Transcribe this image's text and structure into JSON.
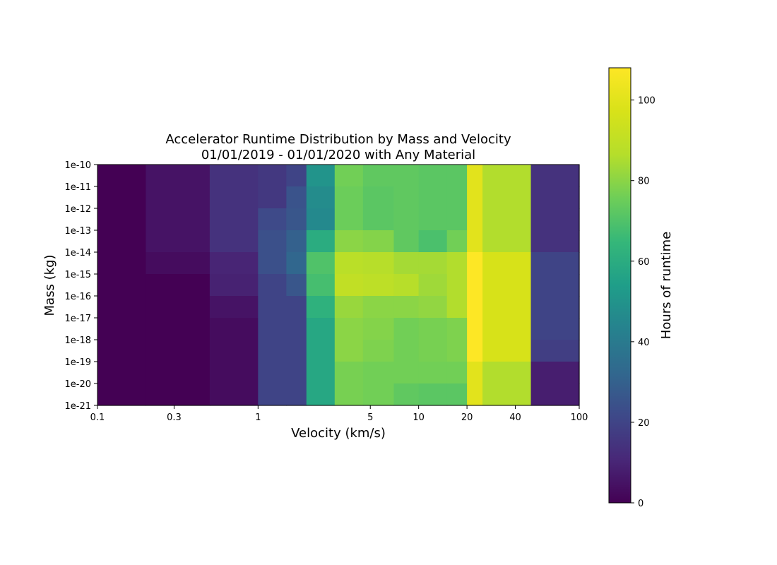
{
  "chart_data": {
    "type": "heatmap",
    "title": "Accelerator Runtime Distribution by Mass and Velocity",
    "subtitle": "01/01/2019 - 01/01/2020 with Any Material",
    "xlabel": "Velocity (km/s)",
    "ylabel": "Mass (kg)",
    "x_scale": "log",
    "y_scale": "log",
    "xlim": [
      0.1,
      100
    ],
    "ylim": [
      1e-21,
      1e-10
    ],
    "x_ticks": [
      0.1,
      0.3,
      1,
      5,
      10,
      20,
      40,
      100
    ],
    "x_tick_labels": [
      "0.1",
      "0.3",
      "1",
      "5",
      "10",
      "20",
      "40",
      "100"
    ],
    "y_ticks": [
      1e-10,
      1e-11,
      1e-12,
      1e-13,
      1e-14,
      1e-15,
      1e-16,
      1e-17,
      1e-18,
      1e-19,
      1e-20,
      1e-21
    ],
    "y_tick_labels": [
      "1e-10",
      "1e-11",
      "1e-12",
      "1e-13",
      "1e-14",
      "1e-15",
      "1e-16",
      "1e-17",
      "1e-18",
      "1e-19",
      "1e-20",
      "1e-21"
    ],
    "colormap": "viridis",
    "colorbar": {
      "label": "Hours of runtime",
      "range": [
        0,
        108
      ],
      "ticks": [
        0,
        20,
        40,
        60,
        80,
        100
      ],
      "tick_labels": [
        "0",
        "20",
        "40",
        "60",
        "80",
        "100"
      ]
    },
    "x_bin_edges": [
      0.1,
      0.2,
      0.5,
      1,
      1.5,
      2,
      3,
      4.5,
      7,
      10,
      15,
      20,
      25,
      50,
      100
    ],
    "y_bin_edges": [
      1e-10,
      1e-11,
      1e-12,
      1e-13,
      1e-14,
      1e-15,
      1e-16,
      1e-17,
      1e-18,
      1e-19,
      1e-20,
      1e-21
    ],
    "values": [
      [
        0,
        5,
        14,
        16,
        20,
        50,
        76,
        73,
        73,
        72,
        72,
        100,
        86,
        14
      ],
      [
        0,
        5,
        14,
        16,
        25,
        47,
        75,
        72,
        73,
        72,
        72,
        100,
        86,
        14
      ],
      [
        0,
        5,
        14,
        22,
        26,
        46,
        75,
        72,
        73,
        72,
        72,
        100,
        86,
        14
      ],
      [
        0,
        5,
        14,
        24,
        30,
        60,
        80,
        79,
        73,
        69,
        76,
        100,
        86,
        14
      ],
      [
        0,
        3,
        10,
        24,
        32,
        70,
        88,
        87,
        84,
        84,
        86,
        108,
        97,
        20
      ],
      [
        0,
        0,
        9,
        20,
        26,
        68,
        90,
        89,
        87,
        83,
        86,
        108,
        97,
        20
      ],
      [
        0,
        0,
        5,
        20,
        20,
        62,
        82,
        80,
        80,
        81,
        86,
        108,
        97,
        20
      ],
      [
        0,
        0,
        3,
        20,
        20,
        58,
        80,
        79,
        76,
        77,
        78,
        108,
        97,
        20
      ],
      [
        0,
        0,
        3,
        20,
        20,
        58,
        80,
        78,
        76,
        77,
        78,
        108,
        97,
        18
      ],
      [
        0,
        0,
        3,
        20,
        20,
        58,
        77,
        76,
        76,
        76,
        76,
        100,
        86,
        8
      ],
      [
        0,
        0,
        3,
        20,
        20,
        58,
        77,
        76,
        73,
        72,
        72,
        100,
        86,
        8
      ]
    ]
  }
}
